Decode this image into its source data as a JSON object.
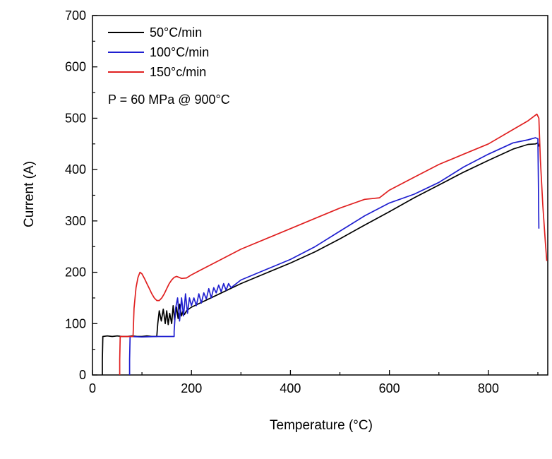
{
  "chart_data": {
    "type": "line",
    "xlabel": "Temperature (°C)",
    "ylabel": "Current (A)",
    "xlim": [
      0,
      920
    ],
    "ylim": [
      0,
      700
    ],
    "x_ticks": [
      0,
      200,
      400,
      600,
      800
    ],
    "y_ticks": [
      0,
      100,
      200,
      300,
      400,
      500,
      600,
      700
    ],
    "grid": false,
    "legend_position": "top-left",
    "annotation": "P = 60 MPa @ 900°C",
    "series": [
      {
        "name": "50°C/min",
        "color": "#000000",
        "x": [
          20,
          20,
          21,
          30,
          40,
          50,
          60,
          70,
          80,
          90,
          100,
          110,
          120,
          130,
          132,
          135,
          139,
          143,
          147,
          150,
          153,
          156,
          160,
          163,
          166,
          170,
          173,
          176,
          180,
          183,
          186,
          190,
          200,
          250,
          300,
          350,
          400,
          450,
          500,
          550,
          600,
          650,
          700,
          750,
          800,
          850,
          880,
          895,
          900,
          903
        ],
        "y": [
          0,
          30,
          75,
          76,
          75,
          76,
          75,
          75,
          76,
          75,
          75,
          76,
          75,
          75,
          100,
          125,
          105,
          128,
          100,
          125,
          98,
          120,
          100,
          135,
          108,
          132,
          110,
          138,
          115,
          125,
          118,
          125,
          132,
          155,
          178,
          198,
          218,
          240,
          265,
          292,
          318,
          345,
          370,
          395,
          418,
          440,
          449,
          450,
          452,
          445
        ]
      },
      {
        "name": "100°C/min",
        "color": "#1f1fd0",
        "x": [
          75,
          75,
          76,
          100,
          130,
          165,
          165,
          168,
          172,
          176,
          180,
          184,
          188,
          192,
          196,
          200,
          205,
          210,
          215,
          220,
          225,
          230,
          235,
          240,
          245,
          250,
          255,
          260,
          265,
          270,
          275,
          280,
          300,
          350,
          400,
          450,
          500,
          550,
          600,
          650,
          700,
          750,
          800,
          850,
          880,
          895,
          900,
          901,
          902
        ],
        "y": [
          0,
          30,
          75,
          74,
          75,
          75,
          85,
          130,
          150,
          105,
          150,
          115,
          158,
          120,
          150,
          135,
          150,
          135,
          158,
          140,
          160,
          148,
          168,
          150,
          170,
          160,
          175,
          162,
          178,
          165,
          178,
          170,
          185,
          205,
          225,
          250,
          280,
          310,
          335,
          352,
          375,
          405,
          430,
          452,
          458,
          462,
          460,
          380,
          285
        ]
      },
      {
        "name": "150°c/min",
        "color": "#e02020",
        "x": [
          55,
          55,
          56,
          70,
          82,
          84,
          88,
          92,
          96,
          100,
          105,
          110,
          115,
          120,
          125,
          130,
          135,
          140,
          145,
          150,
          155,
          160,
          165,
          170,
          175,
          180,
          190,
          200,
          220,
          250,
          300,
          350,
          400,
          450,
          500,
          550,
          580,
          600,
          650,
          700,
          750,
          800,
          850,
          880,
          898,
          902,
          905,
          910,
          915,
          918
        ],
        "y": [
          0,
          30,
          75,
          75,
          75,
          130,
          170,
          190,
          200,
          197,
          188,
          178,
          168,
          158,
          150,
          145,
          145,
          150,
          158,
          168,
          178,
          185,
          190,
          192,
          190,
          188,
          189,
          195,
          205,
          220,
          245,
          265,
          285,
          305,
          325,
          342,
          345,
          360,
          385,
          410,
          430,
          450,
          478,
          495,
          508,
          500,
          420,
          330,
          260,
          222
        ]
      }
    ]
  }
}
